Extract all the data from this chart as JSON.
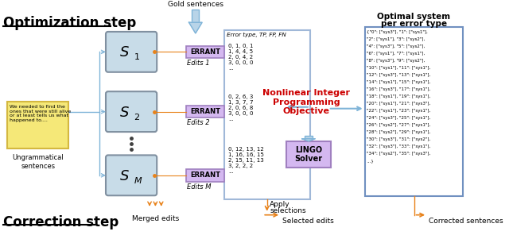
{
  "title_optimization": "Optimization step",
  "title_correction": "Correction step",
  "bg_color": "#ffffff",
  "gold_sentences_text": "Gold sentences",
  "optimal_system_line1": "Optimal system",
  "optimal_system_line2": "per error type",
  "nonlinear_text": "Nonlinear Integer\nProgramming\nObjective",
  "lingo_text": "LINGO\nSolver",
  "ungrammatical_text": "Ungrammatical\nsentences",
  "merged_edits_text": "Merged edits",
  "selected_edits_text": "Selected edits",
  "corrected_sentences_text": "Corrected sentences",
  "apply_selections_line1": "Apply",
  "apply_selections_line2": "selections",
  "sentence_box_text": "We needed to find the\nones that were still alive\nor at least tells us what\nhappened to....",
  "errant_text": "ERRANT",
  "edits1_text": "Edits 1",
  "edits2_text": "Edits 2",
  "editsM_text": "Edits M",
  "error_type_text": "Error type, TP, FP, FN",
  "data_block1": "0, 1, 0, 1\n1, 4, 4, 5\n2, 0, 4, 2\n3, 0, 0, 0\n...",
  "data_block2": "0, 2, 6, 3\n1, 3, 7, 7\n2, 0, 6, 8\n3, 0, 0, 0\n...",
  "data_blockM": "0, 12, 13, 12\n1, 16, 16, 15\n2, 15, 11, 13\n3, 2, 2, 2\n...",
  "optimal_data_lines": [
    "{\"0\": [\"sys3\"], \"1\": [\"sys1\"],",
    "\"2\": [\"sys1\"], \"3\": [\"sys2\"],",
    "\"4\": [\"sys3\"], \"5\": [\"sys2\"],",
    "\"6\": [\"sys1\"], \"7\": [\"sys1\"],",
    "\"8\": [\"sys3\"], \"9\": [\"sys2\"],",
    "\"10\": [\"sys1\"], \"11\": [\"sys1\"],",
    "\"12\": [\"sys3\"], \"13\": [\"sys1\"],",
    "\"14\": [\"sys1\"], \"15\": [\"sys1\"],",
    "\"16\": [\"sys3\"], \"17\": [\"sys1\"],",
    "\"18\": [\"sys1\"], \"19\": [\"sys1\"],",
    "\"20\": [\"sys1\"], \"21\": [\"sys3\"],",
    "\"22\": [\"sys1\"], \"23\": [\"sys1\"],",
    "\"24\": [\"sys3\"], \"25\": [\"sys1\"],",
    "\"26\": [\"sys2\"], \"27\": [\"sys1\"],",
    "\"28\": [\"sys2\"], \"29\": [\"sys1\"],",
    "\"30\": [\"sys3\"], \"31\": [\"sys2\"],",
    "\"32\": [\"sys3\"], \"33\": [\"sys1\"],",
    "\"34\": [\"sys2\"], \"35\": [\"sys3\"],",
    "...}"
  ],
  "blue_arrow_color": "#7fb4d8",
  "blue_arrow_fill": "#b8d4e8",
  "orange_color": "#e8821a",
  "red_text_color": "#cc0000",
  "purple_errant_bg": "#d4b8f0",
  "errant_border": "#a080c0",
  "data_box_border": "#a0b8d8",
  "data_box_bg": "#ffffff",
  "lingo_box_bg": "#d4b8f0",
  "lingo_box_border": "#a080c0",
  "optimal_box_border": "#7090c0",
  "optimal_box_bg": "#ffffff",
  "s_box_fill": "#c8dce8",
  "s_box_border": "#8090a0",
  "sentence_box_fill": "#f5e878",
  "sentence_box_border": "#d4b840"
}
